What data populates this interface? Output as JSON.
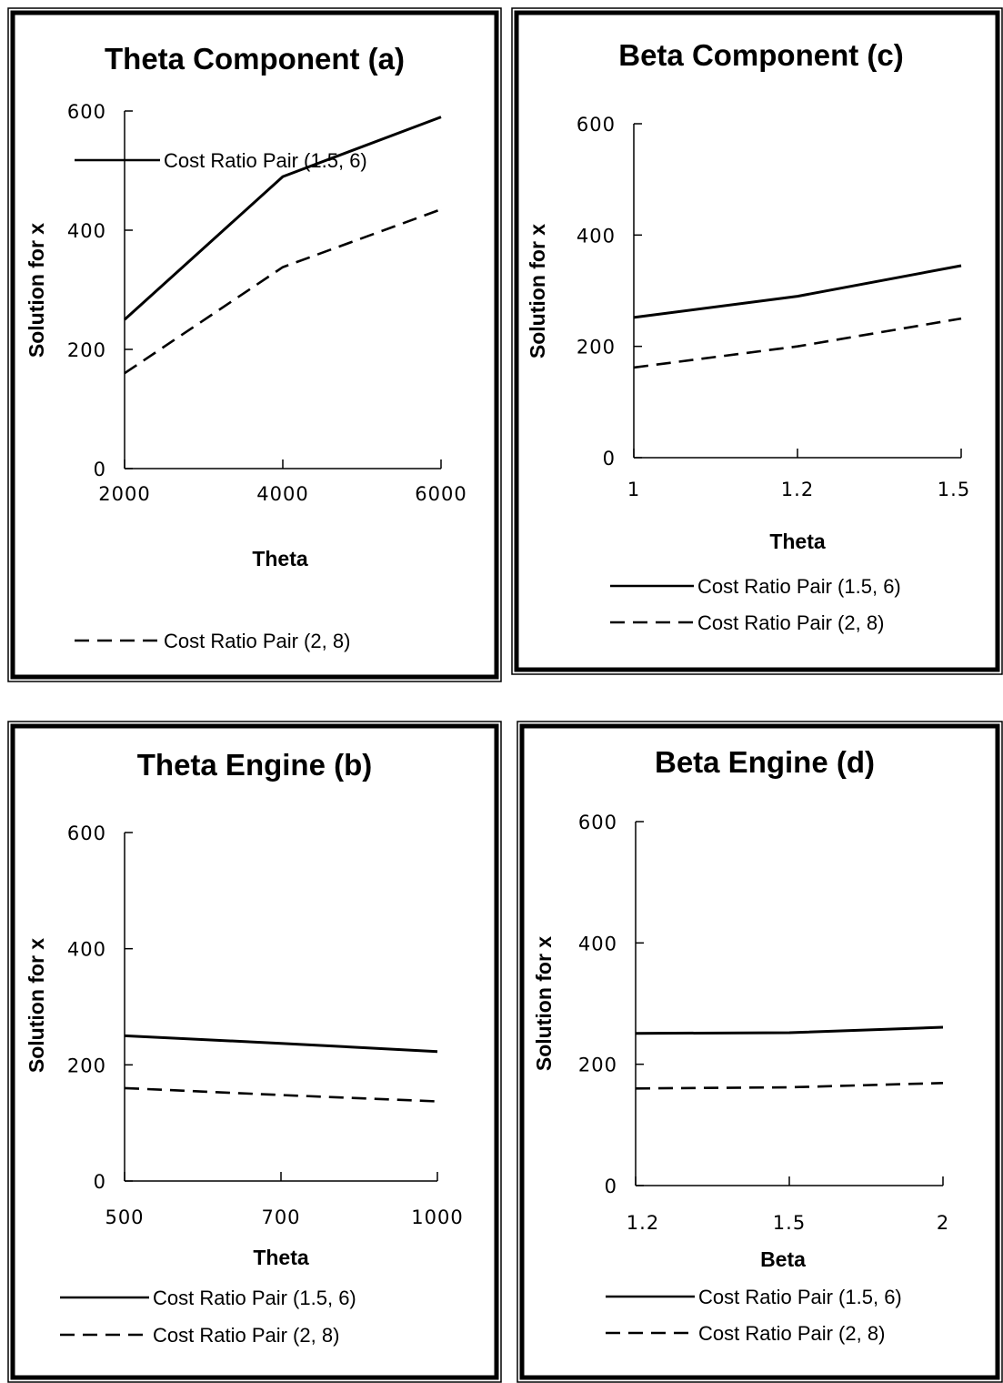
{
  "chart_data": [
    {
      "type": "line",
      "title": "Theta Component (a)",
      "xlabel": "Theta",
      "ylabel": "Solution for x",
      "categories": [
        "2000",
        "4000",
        "6000"
      ],
      "ylim": [
        0,
        600
      ],
      "yticks": [
        "0",
        "200",
        "400",
        "600"
      ],
      "series": [
        {
          "name": "Cost Ratio Pair (1.5, 6)",
          "style": "solid",
          "values": [
            250,
            490,
            590
          ]
        },
        {
          "name": "Cost Ratio Pair (2, 8)",
          "style": "dashed",
          "values": [
            160,
            338,
            435
          ]
        }
      ],
      "legend_position": "bottom"
    },
    {
      "type": "line",
      "title": "Beta Component (c)",
      "xlabel": "Theta",
      "ylabel": "Solution for x",
      "categories": [
        "1",
        "1.2",
        "1.5"
      ],
      "ylim": [
        0,
        600
      ],
      "yticks": [
        "0",
        "200",
        "400",
        "600"
      ],
      "series": [
        {
          "name": "Cost Ratio Pair (1.5, 6)",
          "style": "solid",
          "values": [
            252,
            290,
            345
          ]
        },
        {
          "name": "Cost Ratio Pair (2, 8)",
          "style": "dashed",
          "values": [
            162,
            200,
            250
          ]
        }
      ],
      "legend_position": "bottom"
    },
    {
      "type": "line",
      "title": "Theta Engine (b)",
      "xlabel": "Theta",
      "ylabel": "Solution for x",
      "categories": [
        "500",
        "700",
        "1000"
      ],
      "ylim": [
        0,
        600
      ],
      "yticks": [
        "0",
        "200",
        "400",
        "600"
      ],
      "series": [
        {
          "name": "Cost Ratio Pair (1.5, 6)",
          "style": "solid",
          "values": [
            250,
            237,
            223
          ]
        },
        {
          "name": "Cost Ratio Pair (2, 8)",
          "style": "dashed",
          "values": [
            160,
            148,
            137
          ]
        }
      ],
      "legend_position": "bottom"
    },
    {
      "type": "line",
      "title": "Beta Engine (d)",
      "xlabel": "Beta",
      "ylabel": "Solution for x",
      "categories": [
        "1.2",
        "1.5",
        "2"
      ],
      "ylim": [
        0,
        600
      ],
      "yticks": [
        "0",
        "200",
        "400",
        "600"
      ],
      "series": [
        {
          "name": "Cost Ratio Pair (1.5, 6)",
          "style": "solid",
          "values": [
            251,
            252,
            261
          ]
        },
        {
          "name": "Cost Ratio Pair (2, 8)",
          "style": "dashed",
          "values": [
            160,
            162,
            169
          ]
        }
      ],
      "legend_position": "bottom"
    }
  ]
}
